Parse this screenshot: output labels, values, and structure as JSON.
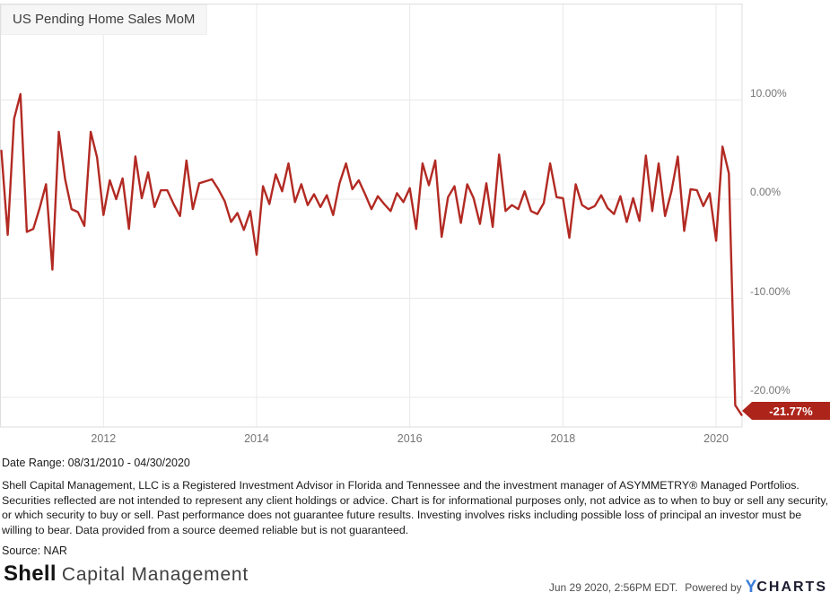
{
  "title": "US Pending Home Sales MoM",
  "colors": {
    "line": "#b22a23",
    "badge_bg": "#ad241a",
    "badge_text": "#ffffff",
    "grid": "#e9e9e9",
    "plot_border": "#dedede",
    "axis_text": "#757575",
    "ycharts_blue": "#3a7cd9"
  },
  "chart_data": {
    "type": "line",
    "series_name": "US Pending Home Sales MoM",
    "unit": "percent",
    "frequency": "monthly",
    "date_range_start": "08/31/2010",
    "date_range_end": "04/30/2020",
    "x": [
      "2010-08",
      "2010-09",
      "2010-10",
      "2010-11",
      "2010-12",
      "2011-01",
      "2011-02",
      "2011-03",
      "2011-04",
      "2011-05",
      "2011-06",
      "2011-07",
      "2011-08",
      "2011-09",
      "2011-10",
      "2011-11",
      "2011-12",
      "2012-01",
      "2012-02",
      "2012-03",
      "2012-04",
      "2012-05",
      "2012-06",
      "2012-07",
      "2012-08",
      "2012-09",
      "2012-10",
      "2012-11",
      "2012-12",
      "2013-01",
      "2013-02",
      "2013-03",
      "2013-04",
      "2013-05",
      "2013-06",
      "2013-07",
      "2013-08",
      "2013-09",
      "2013-10",
      "2013-11",
      "2013-12",
      "2014-01",
      "2014-02",
      "2014-03",
      "2014-04",
      "2014-05",
      "2014-06",
      "2014-07",
      "2014-08",
      "2014-09",
      "2014-10",
      "2014-11",
      "2014-12",
      "2015-01",
      "2015-02",
      "2015-03",
      "2015-04",
      "2015-05",
      "2015-06",
      "2015-07",
      "2015-08",
      "2015-09",
      "2015-10",
      "2015-11",
      "2015-12",
      "2016-01",
      "2016-02",
      "2016-03",
      "2016-04",
      "2016-05",
      "2016-06",
      "2016-07",
      "2016-08",
      "2016-09",
      "2016-10",
      "2016-11",
      "2016-12",
      "2017-01",
      "2017-02",
      "2017-03",
      "2017-04",
      "2017-05",
      "2017-06",
      "2017-07",
      "2017-08",
      "2017-09",
      "2017-10",
      "2017-11",
      "2017-12",
      "2018-01",
      "2018-02",
      "2018-03",
      "2018-04",
      "2018-05",
      "2018-06",
      "2018-07",
      "2018-08",
      "2018-09",
      "2018-10",
      "2018-11",
      "2018-12",
      "2019-01",
      "2019-02",
      "2019-03",
      "2019-04",
      "2019-05",
      "2019-06",
      "2019-07",
      "2019-08",
      "2019-09",
      "2019-10",
      "2019-11",
      "2019-12",
      "2020-01",
      "2020-02",
      "2020-03",
      "2020-04"
    ],
    "values": [
      4.9,
      -3.6,
      8.1,
      10.6,
      -3.3,
      -3.0,
      -0.9,
      1.5,
      -7.1,
      6.8,
      2.0,
      -1.0,
      -1.3,
      -2.7,
      6.8,
      4.2,
      -1.6,
      1.9,
      0.0,
      2.1,
      -3.0,
      4.3,
      0.1,
      2.7,
      -0.8,
      0.9,
      0.9,
      -0.5,
      -1.7,
      3.9,
      -1.0,
      1.6,
      1.8,
      2.0,
      1.0,
      -0.2,
      -2.3,
      -1.4,
      -3.1,
      -1.2,
      -5.6,
      1.3,
      -0.5,
      2.5,
      0.8,
      3.6,
      -0.3,
      1.5,
      -0.6,
      0.5,
      -0.8,
      0.4,
      -1.6,
      1.6,
      3.6,
      1.0,
      1.9,
      0.5,
      -1.0,
      0.3,
      -0.5,
      -1.2,
      0.6,
      -0.3,
      1.1,
      -3.0,
      3.6,
      1.4,
      3.9,
      -3.8,
      0.2,
      1.3,
      -2.4,
      1.5,
      0.1,
      -2.5,
      1.6,
      -2.8,
      4.5,
      -1.2,
      -0.6,
      -1.0,
      0.8,
      -1.2,
      -1.5,
      -0.4,
      3.6,
      0.2,
      0.1,
      -3.9,
      1.5,
      -0.6,
      -1.0,
      -0.7,
      0.4,
      -0.9,
      -1.5,
      0.3,
      -2.3,
      0.1,
      -2.2,
      4.4,
      -1.2,
      3.6,
      -1.7,
      0.8,
      4.3,
      -3.2,
      1.0,
      0.9,
      -0.7,
      0.6,
      -4.2,
      5.3,
      2.6,
      -20.8,
      -21.77
    ],
    "last_value": -21.77,
    "last_value_label": "-21.77%",
    "y_ticks": [
      10,
      0,
      -10,
      -20
    ],
    "y_tick_labels": [
      "10.00%",
      "0.00%",
      "-10.00%",
      "-20.00%"
    ],
    "x_tick_labels": [
      "2012",
      "2014",
      "2016",
      "2018",
      "2020"
    ],
    "ylim": [
      -23.0,
      19.7
    ],
    "grid": true,
    "legend": "none"
  },
  "footer": {
    "date_range": "Date Range: 08/31/2010 - 04/30/2020",
    "disclaimer": "Shell Capital Management, LLC is a Registered Investment Advisor in Florida and Tennessee and the investment manager of ASYMMETRY® Managed Portfolios. Securities reflected are not intended to represent any client holdings or advice. Chart is for informational purposes only, not advice as to when to buy or sell any security, or which security to buy or sell. Past performance does not guarantee future results. Investing involves risks including possible loss of principal an investor must be willing to bear. Data provided from a source deemed reliable but is not guaranteed.",
    "source": "Source: NAR",
    "brand_bold": "Shell",
    "brand_rest": "Capital Management",
    "timestamp": "Jun 29 2020, 2:56PM EDT.",
    "powered_by": "Powered by",
    "ycharts_y": "Y",
    "ycharts_rest": "CHARTS"
  }
}
